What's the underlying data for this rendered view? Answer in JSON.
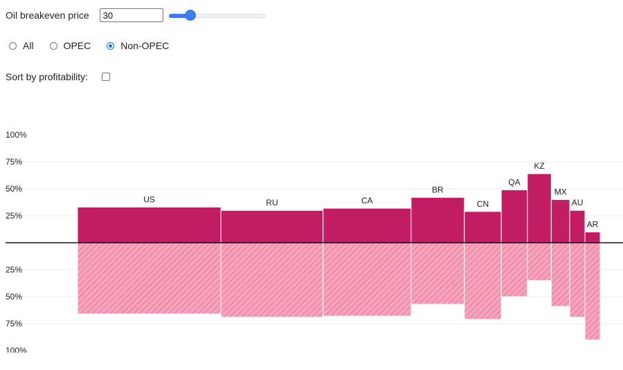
{
  "controls": {
    "price_label": "Oil breakeven price",
    "price_value": "30",
    "slider_fraction": 0.19,
    "radio_all": "All",
    "radio_opec": "OPEC",
    "radio_nonopec": "Non-OPEC",
    "selected_filter": "Non-OPEC",
    "sort_label": "Sort by profitability:",
    "sort_checked": false
  },
  "colors": {
    "profitable": "#c21d63",
    "unprofitable": "#f7a3bd",
    "hatch": "#e7849f",
    "slider_accent": "#3b7bea"
  },
  "chart_data": {
    "type": "bar",
    "description_of_axes": "upper half: share of production profitable; lower half: share unprofitable",
    "y_ticks_upper": [
      "100%",
      "75%",
      "50%",
      "25%"
    ],
    "y_ticks_lower": [
      "25%",
      "50%",
      "75%",
      "100%"
    ],
    "ylim": [
      0,
      100
    ],
    "categories": [
      "US",
      "RU",
      "CA",
      "BR",
      "CN",
      "QA",
      "KZ",
      "MX",
      "AU",
      "AR"
    ],
    "series": [
      {
        "values": [
          33,
          30,
          32,
          42,
          29,
          49,
          64,
          40,
          30,
          10
        ]
      },
      {
        "values": [
          66,
          69,
          68,
          57,
          71,
          50,
          35,
          59,
          69,
          90
        ]
      }
    ],
    "widths": [
      132,
      94,
      81,
      49,
      34,
      24,
      22,
      17,
      14,
      14
    ]
  }
}
